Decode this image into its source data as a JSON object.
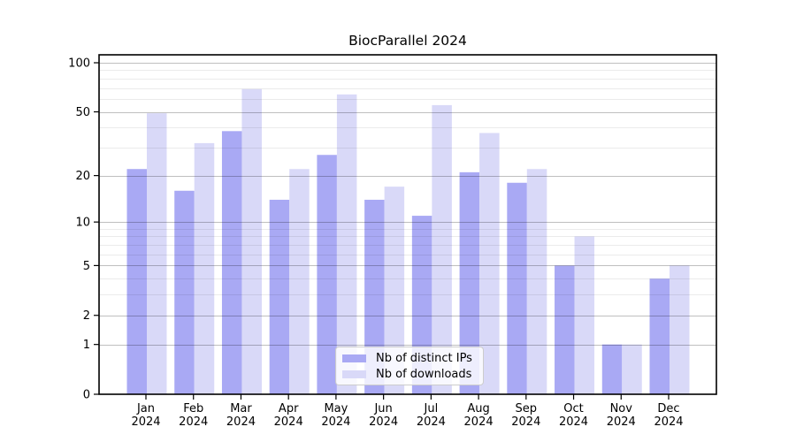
{
  "chart_data": {
    "type": "bar",
    "title": "BiocParallel 2024",
    "categories": [
      "Jan 2024",
      "Feb 2024",
      "Mar 2024",
      "Apr 2024",
      "May 2024",
      "Jun 2024",
      "Jul 2024",
      "Aug 2024",
      "Sep 2024",
      "Oct 2024",
      "Nov 2024",
      "Dec 2024"
    ],
    "series": [
      {
        "name": "Nb of distinct IPs",
        "color": "#a9a9f4",
        "values": [
          22,
          16,
          38,
          14,
          27,
          14,
          11,
          21,
          18,
          5,
          1,
          4
        ]
      },
      {
        "name": "Nb of downloads",
        "color": "#d9d9f8",
        "values": [
          49,
          32,
          69,
          22,
          64,
          17,
          55,
          37,
          22,
          8,
          1,
          5
        ]
      }
    ],
    "yscale": "log1p",
    "ylim": [
      0,
      100
    ],
    "y_major_ticks": [
      0,
      1,
      2,
      5,
      10,
      20,
      50,
      100
    ],
    "y_minor_gridlines": [
      3,
      4,
      6,
      7,
      8,
      9,
      30,
      40,
      60,
      70,
      80,
      90
    ],
    "grid": true,
    "legend_position": "lower center"
  },
  "colors": {
    "major_grid": "rgba(0,0,0,0.25)",
    "minor_grid": "rgba(0,0,0,0.08)",
    "spine": "#000000",
    "tick_label": "#000000",
    "legend_border": "#cccccc"
  }
}
